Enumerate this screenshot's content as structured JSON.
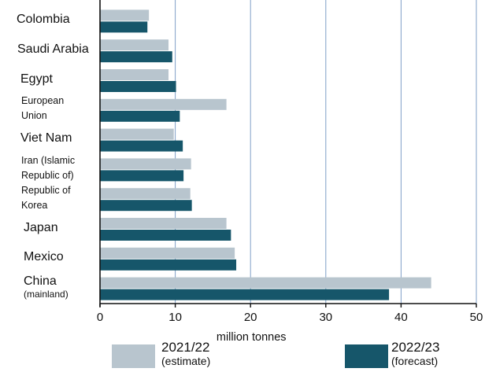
{
  "chart_data": {
    "type": "bar",
    "orientation": "horizontal",
    "categories": [
      {
        "line1": "Colombia",
        "line2": ""
      },
      {
        "line1": "Saudi Arabia",
        "line2": ""
      },
      {
        "line1": "Egypt",
        "line2": ""
      },
      {
        "line1": "European",
        "line2": "Union"
      },
      {
        "line1": "Viet Nam",
        "line2": ""
      },
      {
        "line1": "Iran (Islamic",
        "line2": "Republic of)"
      },
      {
        "line1": "Republic of",
        "line2": "Korea"
      },
      {
        "line1": "Japan",
        "line2": ""
      },
      {
        "line1": "Mexico",
        "line2": ""
      },
      {
        "line1": "China",
        "line2": "(mainland)"
      }
    ],
    "series": [
      {
        "name": "2021/22",
        "name_note": "(estimate)",
        "color": "#b8c5ce",
        "values": [
          6.5,
          9.1,
          9.1,
          16.8,
          9.8,
          12.1,
          12.0,
          16.8,
          17.9,
          44.0
        ]
      },
      {
        "name": "2022/23",
        "name_note": "(forecast)",
        "color": "#16566a",
        "values": [
          6.3,
          9.6,
          10.1,
          10.6,
          11.0,
          11.1,
          12.2,
          17.4,
          18.1,
          38.4
        ]
      }
    ],
    "xlabel": "million tonnes",
    "xlim": [
      0,
      50
    ],
    "xticks": [
      0,
      10,
      20,
      30,
      40,
      50
    ],
    "gridlines": "vertical",
    "legend_position": "bottom",
    "gridline_color": "#7f9fc7"
  }
}
